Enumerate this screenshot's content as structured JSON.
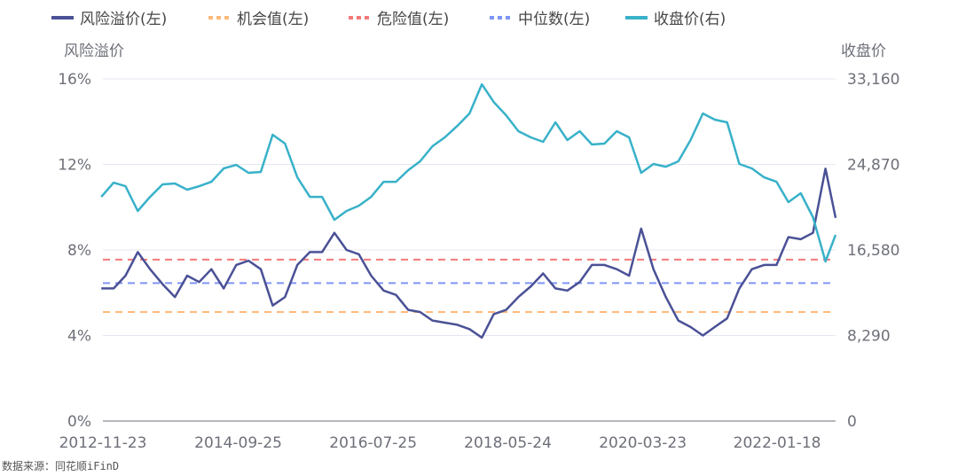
{
  "chart_data": {
    "type": "line",
    "legend_position": "top",
    "grid": true,
    "left_axis": {
      "title": "风险溢价",
      "ticks": [
        "0%",
        "4%",
        "8%",
        "12%",
        "16%"
      ],
      "ylim": [
        0,
        16
      ],
      "unit": "%"
    },
    "right_axis": {
      "title": "收盘价",
      "ticks": [
        "0",
        "8,290",
        "16,580",
        "24,870",
        "33,160"
      ],
      "ylim": [
        0,
        33160
      ]
    },
    "x_ticks": [
      "2012-11-23",
      "2014-09-25",
      "2016-07-25",
      "2018-05-24",
      "2020-03-23",
      "2022-01-18"
    ],
    "xlim": [
      "2012-11-23",
      "2022-11-04"
    ],
    "colors": {
      "risk": "#4a5196",
      "opportunity": "#ffb97a",
      "danger": "#f47a7a",
      "median": "#7f95f5",
      "close": "#38b1c9"
    },
    "dates": [
      "2012-11",
      "2013-01",
      "2013-03",
      "2013-05",
      "2013-07",
      "2013-09",
      "2013-11",
      "2014-01",
      "2014-03",
      "2014-05",
      "2014-07",
      "2014-09",
      "2014-11",
      "2015-01",
      "2015-03",
      "2015-05",
      "2015-07",
      "2015-09",
      "2015-11",
      "2016-01",
      "2016-03",
      "2016-05",
      "2016-07",
      "2016-09",
      "2016-11",
      "2017-01",
      "2017-03",
      "2017-05",
      "2017-07",
      "2017-09",
      "2017-11",
      "2018-01",
      "2018-03",
      "2018-05",
      "2018-07",
      "2018-09",
      "2018-11",
      "2019-01",
      "2019-03",
      "2019-05",
      "2019-07",
      "2019-09",
      "2019-11",
      "2020-01",
      "2020-03",
      "2020-05",
      "2020-07",
      "2020-09",
      "2020-11",
      "2021-01",
      "2021-03",
      "2021-05",
      "2021-07",
      "2021-09",
      "2021-11",
      "2022-01",
      "2022-03",
      "2022-05",
      "2022-07",
      "2022-09",
      "2022-11"
    ],
    "series": [
      {
        "name": "风险溢价(左)",
        "axis": "left",
        "style": "solid",
        "values": [
          6.2,
          6.2,
          6.8,
          7.9,
          7.1,
          6.4,
          5.8,
          6.8,
          6.5,
          7.1,
          6.2,
          7.3,
          7.5,
          7.1,
          5.4,
          5.8,
          7.3,
          7.9,
          7.9,
          8.8,
          8.0,
          7.8,
          6.8,
          6.1,
          5.9,
          5.2,
          5.1,
          4.7,
          4.6,
          4.5,
          4.3,
          3.9,
          5.0,
          5.2,
          5.8,
          6.3,
          6.9,
          6.2,
          6.1,
          6.5,
          7.3,
          7.3,
          7.1,
          6.8,
          9.0,
          7.1,
          5.8,
          4.7,
          4.4,
          4.0,
          4.4,
          4.8,
          6.2,
          7.1,
          7.3,
          7.3,
          8.6,
          8.5,
          8.8,
          11.8,
          9.5
        ]
      },
      {
        "name": "机会值(左)",
        "axis": "left",
        "style": "dotted",
        "value": 5.1
      },
      {
        "name": "危险值(左)",
        "axis": "left",
        "style": "dotted",
        "value": 7.55
      },
      {
        "name": "中位数(左)",
        "axis": "left",
        "style": "dotted",
        "value": 6.45
      },
      {
        "name": "收盘价(右)",
        "axis": "right",
        "style": "solid",
        "values": [
          21730,
          23100,
          22760,
          20360,
          21730,
          22940,
          23020,
          22420,
          22760,
          23190,
          24480,
          24830,
          24050,
          24140,
          27750,
          26890,
          23620,
          21730,
          21730,
          19500,
          20360,
          20870,
          21730,
          23190,
          23190,
          24310,
          25170,
          26630,
          27490,
          28600,
          29810,
          32640,
          30920,
          29640,
          28090,
          27490,
          27060,
          28950,
          27230,
          28090,
          26800,
          26890,
          28090,
          27490,
          24050,
          24910,
          24650,
          25170,
          27230,
          29810,
          29210,
          28950,
          24910,
          24480,
          23620,
          23190,
          21220,
          22080,
          19760,
          15460,
          18040
        ]
      }
    ]
  },
  "source": "数据来源：同花顺iFinD"
}
